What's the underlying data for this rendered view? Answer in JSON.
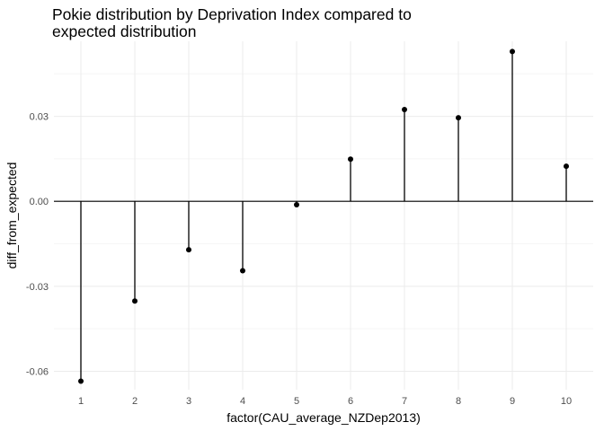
{
  "chart_data": {
    "type": "lollipop",
    "title_lines": [
      "Pokie distribution by Deprivation Index compared to",
      "expected distribution"
    ],
    "xlabel": "factor(CAU_average_NZDep2013)",
    "ylabel": "diff_from_expected",
    "categories": [
      "1",
      "2",
      "3",
      "4",
      "5",
      "6",
      "7",
      "8",
      "9",
      "10"
    ],
    "values": [
      -0.0635,
      -0.0352,
      -0.0171,
      -0.0245,
      -0.0012,
      0.0149,
      0.0324,
      0.0295,
      0.0529,
      0.0124
    ],
    "ylim": [
      -0.0665,
      0.0565
    ],
    "yticks": [
      -0.06,
      -0.03,
      0.0
    ],
    "ytick_labels": [
      "-0.06",
      "-0.03",
      "0.00"
    ],
    "yticks_extra": [
      0.03
    ],
    "ytick_labels_extra": [
      "0.03"
    ],
    "baseline": 0,
    "grid": true,
    "legend": "none",
    "colors": {
      "mark": "#000000",
      "grid_major": "#ebebeb",
      "grid_minor": "#f5f5f5"
    }
  }
}
